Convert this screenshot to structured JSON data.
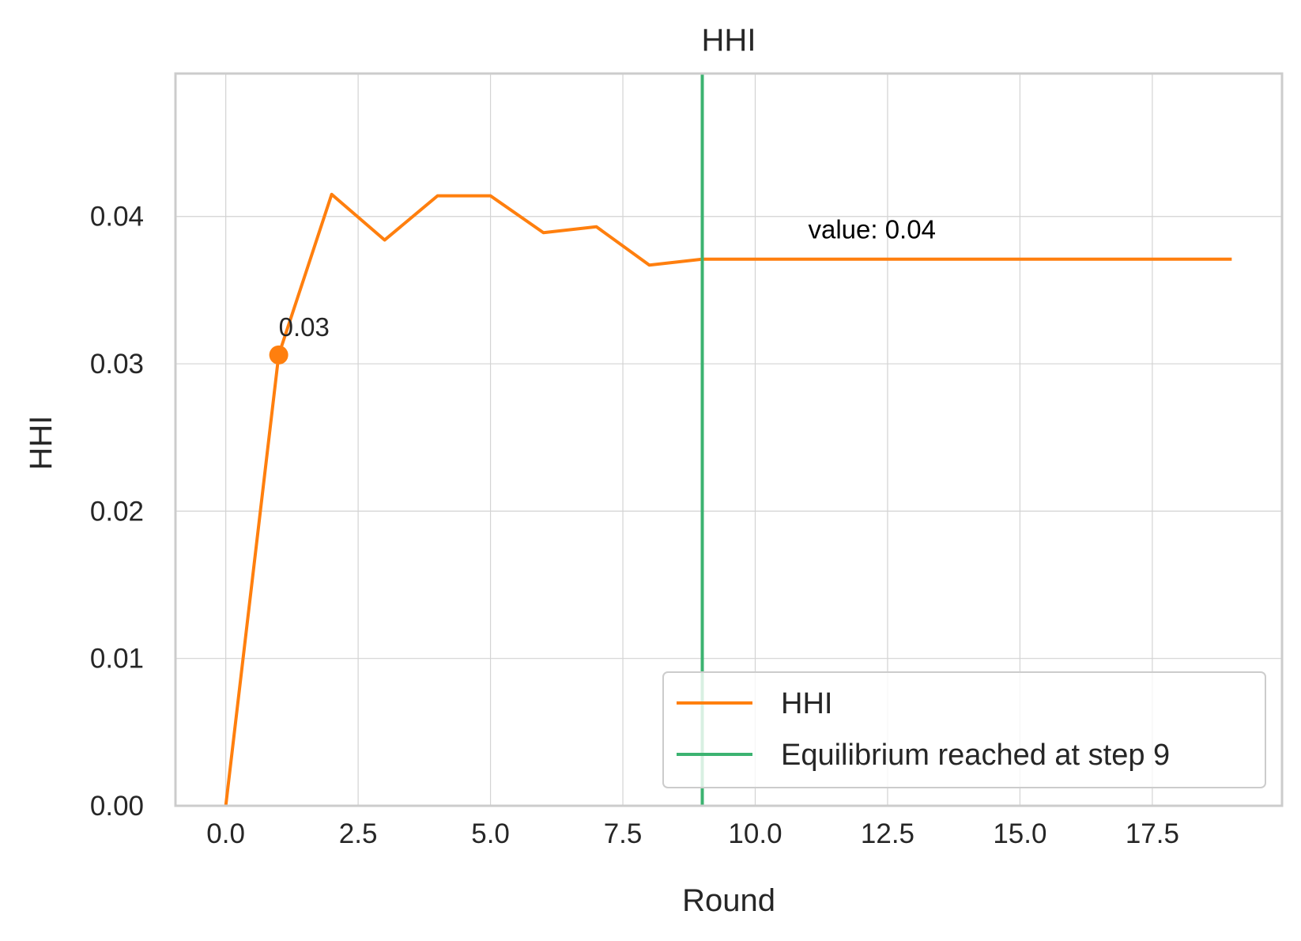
{
  "chart_data": {
    "type": "line",
    "title": "HHI",
    "xlabel": "Round",
    "ylabel": "HHI",
    "xlim": [
      -0.95,
      19.95
    ],
    "ylim": [
      0,
      0.0497
    ],
    "xticks": [
      0.0,
      2.5,
      5.0,
      7.5,
      10.0,
      12.5,
      15.0,
      17.5
    ],
    "xtick_labels": [
      "0.0",
      "2.5",
      "5.0",
      "7.5",
      "10.0",
      "12.5",
      "15.0",
      "17.5"
    ],
    "yticks": [
      0.0,
      0.01,
      0.02,
      0.03,
      0.04
    ],
    "ytick_labels": [
      "0.00",
      "0.01",
      "0.02",
      "0.03",
      "0.04"
    ],
    "grid": true,
    "legend_position": "lower-right",
    "series": [
      {
        "name": "HHI",
        "color": "#ff7f0e",
        "x": [
          0,
          1,
          2,
          3,
          4,
          5,
          6,
          7,
          8,
          9,
          10,
          11,
          12,
          13,
          14,
          15,
          16,
          17,
          18,
          19
        ],
        "y": [
          0.0,
          0.0306,
          0.0415,
          0.0384,
          0.0414,
          0.0414,
          0.0389,
          0.0393,
          0.0367,
          0.0371,
          0.0371,
          0.0371,
          0.0371,
          0.0371,
          0.0371,
          0.0371,
          0.0371,
          0.0371,
          0.0371,
          0.0371
        ]
      }
    ],
    "vline": {
      "name": "Equilibrium reached at step 9",
      "x": 9,
      "color": "#3cb371"
    },
    "marker": {
      "x": 1,
      "y": 0.0306,
      "label": "0.03"
    },
    "annotation": {
      "text": "value: 0.04",
      "x": 11,
      "y": 0.0385
    },
    "colors": {
      "grid": "#d3d3d3",
      "frame": "#cccccc",
      "annotation": "#000000"
    }
  }
}
